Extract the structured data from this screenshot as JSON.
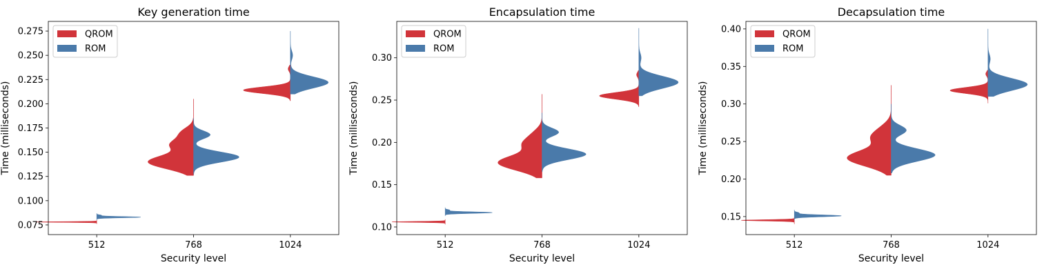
{
  "chart_data": [
    {
      "type": "violin",
      "title": "Key generation time",
      "xlabel": "Security level",
      "ylabel": "Time (milliseconds)",
      "categories": [
        "512",
        "768",
        "1024"
      ],
      "ylim": [
        0.065,
        0.285
      ],
      "yticks": [
        0.075,
        0.1,
        0.125,
        0.15,
        0.175,
        0.2,
        0.225,
        0.25,
        0.275
      ],
      "ytick_labels": [
        "0.075",
        "0.100",
        "0.125",
        "0.150",
        "0.175",
        "0.200",
        "0.225",
        "0.250",
        "0.275"
      ],
      "legend": {
        "placement": "top-left",
        "entries": [
          "QROM",
          "ROM"
        ]
      },
      "series": [
        {
          "name": "QROM",
          "color": "#d1343a",
          "side": "left",
          "groups": [
            {
              "category": "512",
              "range": [
                0.076,
                0.08
              ],
              "peaks": [
                [
                  0.078,
                  0.8
                ]
              ]
            },
            {
              "category": "768",
              "range": [
                0.126,
                0.205
              ],
              "peaks": [
                [
                  0.14,
                  0.6
                ],
                [
                  0.158,
                  0.28
                ],
                [
                  0.17,
                  0.16
                ]
              ]
            },
            {
              "category": "1024",
              "range": [
                0.203,
                0.24
              ],
              "peaks": [
                [
                  0.214,
                  0.62
                ],
                [
                  0.236,
                  0.03
                ]
              ]
            }
          ]
        },
        {
          "name": "ROM",
          "color": "#4a7aaa",
          "side": "right",
          "groups": [
            {
              "category": "512",
              "range": [
                0.08,
                0.087
              ],
              "peaks": [
                [
                  0.083,
                  0.58
                ],
                [
                  0.085,
                  0.06
                ]
              ]
            },
            {
              "category": "768",
              "range": [
                0.127,
                0.185
              ],
              "peaks": [
                [
                  0.145,
                  0.6
                ],
                [
                  0.168,
                  0.22
                ]
              ]
            },
            {
              "category": "1024",
              "range": [
                0.21,
                0.275
              ],
              "peaks": [
                [
                  0.222,
                  0.5
                ],
                [
                  0.25,
                  0.03
                ]
              ]
            }
          ]
        }
      ]
    },
    {
      "type": "violin",
      "title": "Encapsulation time",
      "xlabel": "Security level",
      "ylabel": "Time (milliseconds)",
      "categories": [
        "512",
        "768",
        "1024"
      ],
      "ylim": [
        0.091,
        0.343
      ],
      "yticks": [
        0.1,
        0.15,
        0.2,
        0.25,
        0.3
      ],
      "ytick_labels": [
        "0.10",
        "0.15",
        "0.20",
        "0.25",
        "0.30"
      ],
      "legend": {
        "placement": "top-left",
        "entries": [
          "QROM",
          "ROM"
        ]
      },
      "series": [
        {
          "name": "QROM",
          "color": "#d1343a",
          "side": "left",
          "groups": [
            {
              "category": "512",
              "range": [
                0.103,
                0.109
              ],
              "peaks": [
                [
                  0.106,
                  0.7
                ]
              ]
            },
            {
              "category": "768",
              "range": [
                0.158,
                0.257
              ],
              "peaks": [
                [
                  0.176,
                  0.58
                ],
                [
                  0.198,
                  0.22
                ],
                [
                  0.21,
                  0.1
                ]
              ]
            },
            {
              "category": "1024",
              "range": [
                0.242,
                0.285
              ],
              "peaks": [
                [
                  0.255,
                  0.52
                ],
                [
                  0.28,
                  0.03
                ]
              ]
            }
          ]
        },
        {
          "name": "ROM",
          "color": "#4a7aaa",
          "side": "right",
          "groups": [
            {
              "category": "512",
              "range": [
                0.113,
                0.123
              ],
              "peaks": [
                [
                  0.117,
                  0.62
                ],
                [
                  0.12,
                  0.06
                ]
              ]
            },
            {
              "category": "768",
              "range": [
                0.165,
                0.235
              ],
              "peaks": [
                [
                  0.186,
                  0.58
                ],
                [
                  0.212,
                  0.22
                ]
              ]
            },
            {
              "category": "1024",
              "range": [
                0.255,
                0.335
              ],
              "peaks": [
                [
                  0.271,
                  0.52
                ],
                [
                  0.3,
                  0.03
                ]
              ]
            }
          ]
        }
      ]
    },
    {
      "type": "violin",
      "title": "Decapsulation time",
      "xlabel": "Security level",
      "ylabel": "Time (milliseconds)",
      "categories": [
        "512",
        "768",
        "1024"
      ],
      "ylim": [
        0.126,
        0.41
      ],
      "yticks": [
        0.15,
        0.2,
        0.25,
        0.3,
        0.35,
        0.4
      ],
      "ytick_labels": [
        "0.15",
        "0.20",
        "0.25",
        "0.30",
        "0.35",
        "0.40"
      ],
      "legend": {
        "placement": "top-left",
        "entries": [
          "QROM",
          "ROM"
        ]
      },
      "series": [
        {
          "name": "QROM",
          "color": "#d1343a",
          "side": "left",
          "groups": [
            {
              "category": "512",
              "range": [
                0.14,
                0.149
              ],
              "peaks": [
                [
                  0.145,
                  0.7
                ]
              ]
            },
            {
              "category": "768",
              "range": [
                0.205,
                0.325
              ],
              "peaks": [
                [
                  0.228,
                  0.58
                ],
                [
                  0.255,
                  0.22
                ],
                [
                  0.268,
                  0.1
                ]
              ]
            },
            {
              "category": "1024",
              "range": [
                0.301,
                0.345
              ],
              "peaks": [
                [
                  0.318,
                  0.5
                ],
                [
                  0.34,
                  0.03
                ]
              ]
            }
          ]
        },
        {
          "name": "ROM",
          "color": "#4a7aaa",
          "side": "right",
          "groups": [
            {
              "category": "512",
              "range": [
                0.145,
                0.159
              ],
              "peaks": [
                [
                  0.151,
                  0.62
                ],
                [
                  0.155,
                  0.06
                ]
              ]
            },
            {
              "category": "768",
              "range": [
                0.208,
                0.3
              ],
              "peaks": [
                [
                  0.232,
                  0.58
                ],
                [
                  0.265,
                  0.2
                ]
              ]
            },
            {
              "category": "1024",
              "range": [
                0.31,
                0.4
              ],
              "peaks": [
                [
                  0.326,
                  0.52
                ],
                [
                  0.36,
                  0.03
                ]
              ]
            }
          ]
        }
      ]
    }
  ]
}
